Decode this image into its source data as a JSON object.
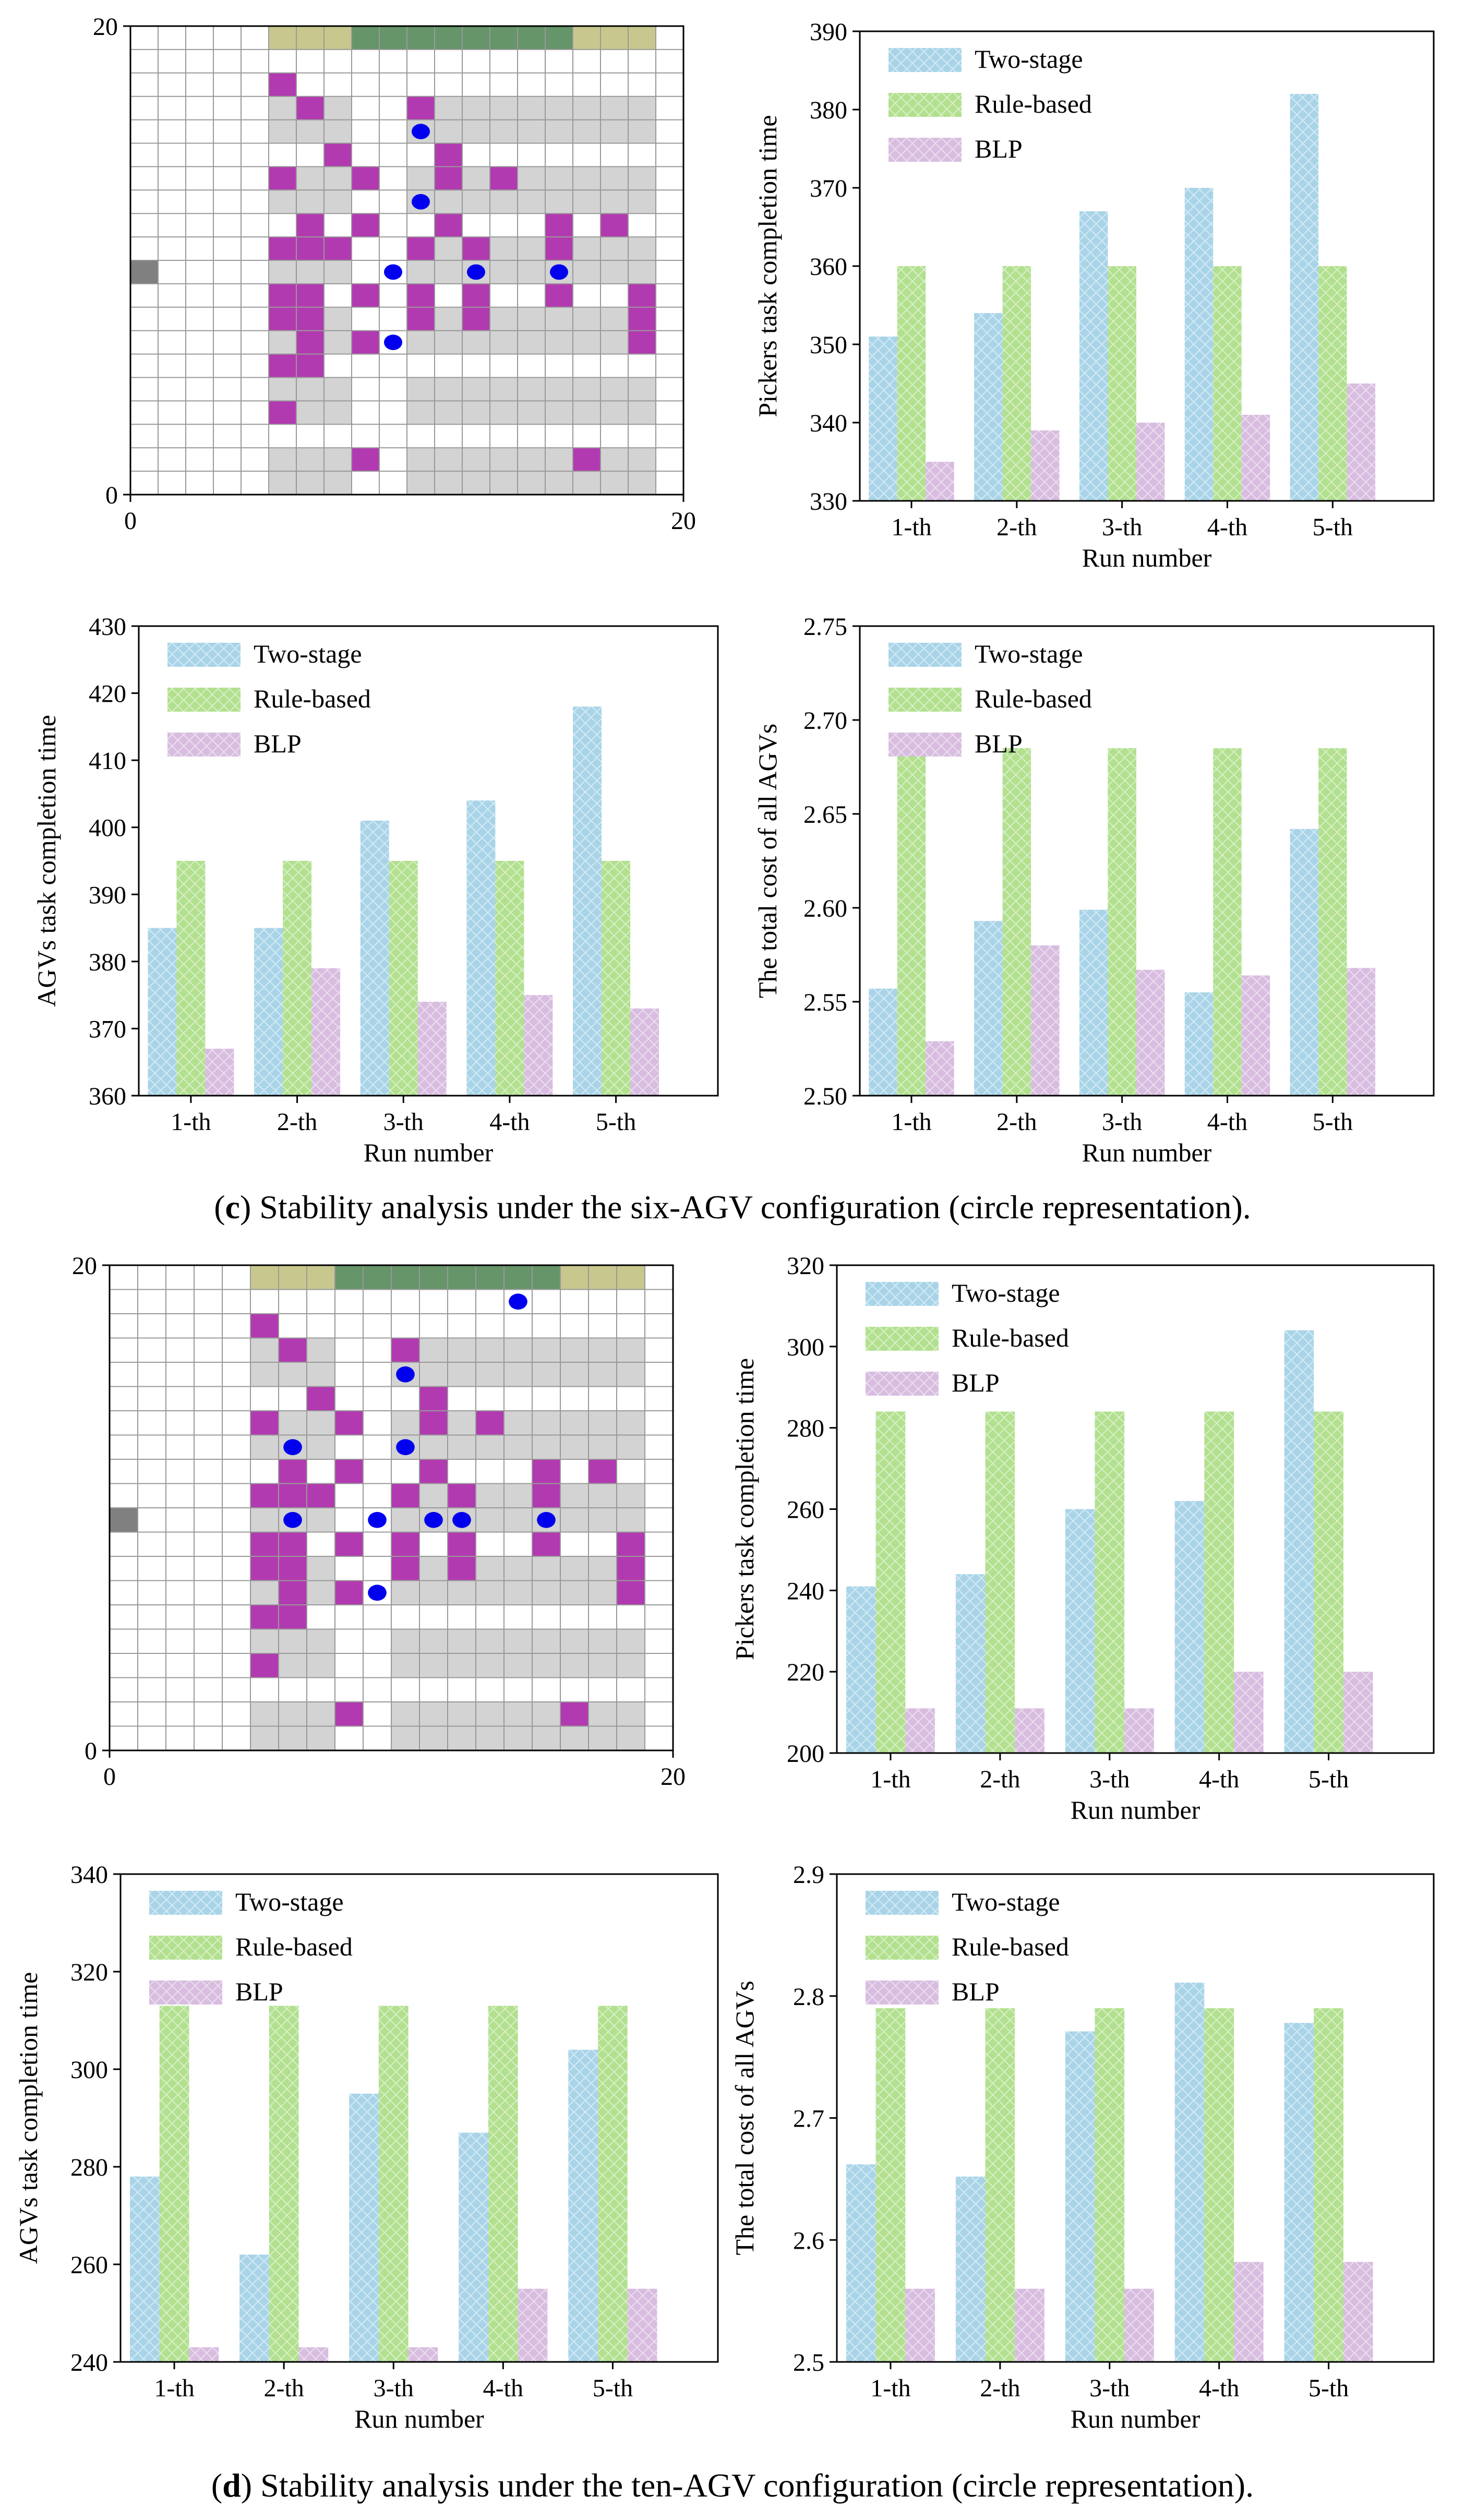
{
  "captions": [
    {
      "label": "c",
      "text": " Stability analysis under the six-AGV configuration (circle representation)."
    },
    {
      "label": "d",
      "text": " Stability analysis under the ten-AGV configuration (circle representation)."
    }
  ],
  "colors": {
    "two_stage": "#a9d4e8",
    "rule_based": "#b2e08f",
    "blp": "#d8bde0",
    "rack": "#d3d3d3",
    "shelf": "#b23ab0",
    "agv": "#0000ee",
    "station": "#808080",
    "top_tan": "#c8c88e",
    "top_green": "#66956a",
    "grid_line": "#999999"
  },
  "legend": {
    "two_stage": "Two-stage",
    "rule_based": "Rule-based",
    "blp": "BLP"
  },
  "grids": [
    {
      "id": "c",
      "xticks": [
        "0",
        "20"
      ],
      "yticks": [
        "0",
        "20"
      ],
      "station": [
        0,
        9
      ],
      "tan_segments": [
        [
          5,
          8
        ],
        [
          16,
          19
        ]
      ],
      "green_segment": [
        8,
        16
      ],
      "rack_rows": [
        16,
        15,
        13,
        12,
        10,
        9,
        7,
        6,
        4,
        3,
        1,
        0
      ],
      "rack_col_groups": [
        [
          5,
          8
        ],
        [
          10,
          15
        ],
        [
          15,
          19
        ]
      ],
      "shelves": [
        [
          5,
          17
        ],
        [
          6,
          16
        ],
        [
          10,
          16
        ],
        [
          7,
          14
        ],
        [
          11,
          14
        ],
        [
          5,
          13
        ],
        [
          8,
          13
        ],
        [
          11,
          13
        ],
        [
          13,
          13
        ],
        [
          6,
          11
        ],
        [
          8,
          11
        ],
        [
          11,
          11
        ],
        [
          15,
          11
        ],
        [
          17,
          11
        ],
        [
          5,
          10
        ],
        [
          6,
          10
        ],
        [
          7,
          10
        ],
        [
          10,
          10
        ],
        [
          12,
          10
        ],
        [
          15,
          10
        ],
        [
          5,
          8
        ],
        [
          6,
          8
        ],
        [
          8,
          8
        ],
        [
          10,
          8
        ],
        [
          12,
          8
        ],
        [
          15,
          8
        ],
        [
          18,
          8
        ],
        [
          5,
          7
        ],
        [
          6,
          7
        ],
        [
          10,
          7
        ],
        [
          12,
          7
        ],
        [
          18,
          7
        ],
        [
          6,
          6
        ],
        [
          8,
          6
        ],
        [
          18,
          6
        ],
        [
          5,
          5
        ],
        [
          6,
          5
        ],
        [
          5,
          3
        ],
        [
          8,
          1
        ],
        [
          16,
          1
        ]
      ],
      "agvs": [
        [
          10.5,
          15.5
        ],
        [
          10.5,
          12.5
        ],
        [
          9.5,
          9.5
        ],
        [
          12.5,
          9.5
        ],
        [
          15.5,
          9.5
        ],
        [
          9.5,
          6.5
        ]
      ]
    },
    {
      "id": "d",
      "xticks": [
        "0",
        "20"
      ],
      "yticks": [
        "0",
        "20"
      ],
      "station": [
        0,
        9
      ],
      "tan_segments": [
        [
          5,
          8
        ],
        [
          16,
          19
        ]
      ],
      "green_segment": [
        8,
        16
      ],
      "rack_rows": [
        16,
        15,
        13,
        12,
        10,
        9,
        7,
        6,
        4,
        3,
        1,
        0
      ],
      "rack_col_groups": [
        [
          5,
          8
        ],
        [
          10,
          15
        ],
        [
          15,
          19
        ]
      ],
      "shelves": [
        [
          5,
          17
        ],
        [
          6,
          16
        ],
        [
          10,
          16
        ],
        [
          7,
          14
        ],
        [
          11,
          14
        ],
        [
          5,
          13
        ],
        [
          8,
          13
        ],
        [
          11,
          13
        ],
        [
          13,
          13
        ],
        [
          6,
          11
        ],
        [
          8,
          11
        ],
        [
          11,
          11
        ],
        [
          15,
          11
        ],
        [
          17,
          11
        ],
        [
          5,
          10
        ],
        [
          6,
          10
        ],
        [
          7,
          10
        ],
        [
          10,
          10
        ],
        [
          12,
          10
        ],
        [
          15,
          10
        ],
        [
          5,
          8
        ],
        [
          6,
          8
        ],
        [
          8,
          8
        ],
        [
          10,
          8
        ],
        [
          12,
          8
        ],
        [
          15,
          8
        ],
        [
          18,
          8
        ],
        [
          5,
          7
        ],
        [
          6,
          7
        ],
        [
          10,
          7
        ],
        [
          12,
          7
        ],
        [
          18,
          7
        ],
        [
          6,
          6
        ],
        [
          8,
          6
        ],
        [
          18,
          6
        ],
        [
          5,
          5
        ],
        [
          6,
          5
        ],
        [
          5,
          3
        ],
        [
          8,
          1
        ],
        [
          16,
          1
        ]
      ],
      "agvs": [
        [
          14.5,
          18.5
        ],
        [
          10.5,
          15.5
        ],
        [
          6.5,
          12.5
        ],
        [
          10.5,
          12.5
        ],
        [
          6.5,
          9.5
        ],
        [
          9.5,
          9.5
        ],
        [
          11.5,
          9.5
        ],
        [
          12.5,
          9.5
        ],
        [
          15.5,
          9.5
        ],
        [
          9.5,
          6.5
        ]
      ]
    }
  ],
  "chart_data": [
    {
      "id": "c_pickers",
      "type": "bar",
      "categories": [
        "1-th",
        "2-th",
        "3-th",
        "4-th",
        "5-th"
      ],
      "series": [
        {
          "name": "Two-stage",
          "values": [
            351,
            354,
            367,
            370,
            382
          ]
        },
        {
          "name": "Rule-based",
          "values": [
            360,
            360,
            360,
            360,
            360
          ]
        },
        {
          "name": "BLP",
          "values": [
            335,
            339,
            340,
            341,
            345
          ]
        }
      ],
      "xlabel": "Run number",
      "ylabel": "Pickers task completion time",
      "ylim": [
        330,
        390
      ],
      "yticks": [
        "330",
        "340",
        "350",
        "360",
        "370",
        "380",
        "390"
      ],
      "legend": "top-left"
    },
    {
      "id": "c_agvs",
      "type": "bar",
      "categories": [
        "1-th",
        "2-th",
        "3-th",
        "4-th",
        "5-th"
      ],
      "series": [
        {
          "name": "Two-stage",
          "values": [
            385,
            385,
            401,
            404,
            418
          ]
        },
        {
          "name": "Rule-based",
          "values": [
            395,
            395,
            395,
            395,
            395
          ]
        },
        {
          "name": "BLP",
          "values": [
            367,
            379,
            374,
            375,
            373
          ]
        }
      ],
      "xlabel": "Run number",
      "ylabel": "AGVs task completion time",
      "ylim": [
        360,
        430
      ],
      "yticks": [
        "360",
        "370",
        "380",
        "390",
        "400",
        "410",
        "420",
        "430"
      ],
      "legend": "top-left"
    },
    {
      "id": "c_cost",
      "type": "bar",
      "categories": [
        "1-th",
        "2-th",
        "3-th",
        "4-th",
        "5-th"
      ],
      "series": [
        {
          "name": "Two-stage",
          "values": [
            2.557,
            2.593,
            2.599,
            2.555,
            2.642
          ]
        },
        {
          "name": "Rule-based",
          "values": [
            2.685,
            2.685,
            2.685,
            2.685,
            2.685
          ]
        },
        {
          "name": "BLP",
          "values": [
            2.529,
            2.58,
            2.567,
            2.564,
            2.568
          ]
        }
      ],
      "xlabel": "Run number",
      "ylabel": "The total cost of all AGVs",
      "ylim": [
        2.5,
        2.75
      ],
      "yticks": [
        "2.50",
        "2.55",
        "2.60",
        "2.65",
        "2.70",
        "2.75"
      ],
      "legend": "top-left"
    },
    {
      "id": "d_pickers",
      "type": "bar",
      "categories": [
        "1-th",
        "2-th",
        "3-th",
        "4-th",
        "5-th"
      ],
      "series": [
        {
          "name": "Two-stage",
          "values": [
            241,
            244,
            260,
            262,
            304
          ]
        },
        {
          "name": "Rule-based",
          "values": [
            284,
            284,
            284,
            284,
            284
          ]
        },
        {
          "name": "BLP",
          "values": [
            211,
            211,
            211,
            220,
            220
          ]
        }
      ],
      "xlabel": "Run number",
      "ylabel": "Pickers task completion time",
      "ylim": [
        200,
        320
      ],
      "yticks": [
        "200",
        "220",
        "240",
        "260",
        "280",
        "300",
        "320"
      ],
      "legend": "top-left"
    },
    {
      "id": "d_agvs",
      "type": "bar",
      "categories": [
        "1-th",
        "2-th",
        "3-th",
        "4-th",
        "5-th"
      ],
      "series": [
        {
          "name": "Two-stage",
          "values": [
            278,
            262,
            295,
            287,
            304
          ]
        },
        {
          "name": "Rule-based",
          "values": [
            313,
            313,
            313,
            313,
            313
          ]
        },
        {
          "name": "BLP",
          "values": [
            243,
            243,
            243,
            255,
            255
          ]
        }
      ],
      "xlabel": "Run number",
      "ylabel": "AGVs task completion time",
      "ylim": [
        240,
        340
      ],
      "yticks": [
        "240",
        "260",
        "280",
        "300",
        "320",
        "340"
      ],
      "legend": "top-left"
    },
    {
      "id": "d_cost",
      "type": "bar",
      "categories": [
        "1-th",
        "2-th",
        "3-th",
        "4-th",
        "5-th"
      ],
      "series": [
        {
          "name": "Two-stage",
          "values": [
            2.662,
            2.652,
            2.771,
            2.811,
            2.778
          ]
        },
        {
          "name": "Rule-based",
          "values": [
            2.79,
            2.79,
            2.79,
            2.79,
            2.79
          ]
        },
        {
          "name": "BLP",
          "values": [
            2.56,
            2.56,
            2.56,
            2.582,
            2.582
          ]
        }
      ],
      "xlabel": "Run number",
      "ylabel": "The total cost of all AGVs",
      "ylim": [
        2.5,
        2.9
      ],
      "yticks": [
        "2.5",
        "2.6",
        "2.7",
        "2.8",
        "2.9"
      ],
      "legend": "top-left"
    }
  ]
}
